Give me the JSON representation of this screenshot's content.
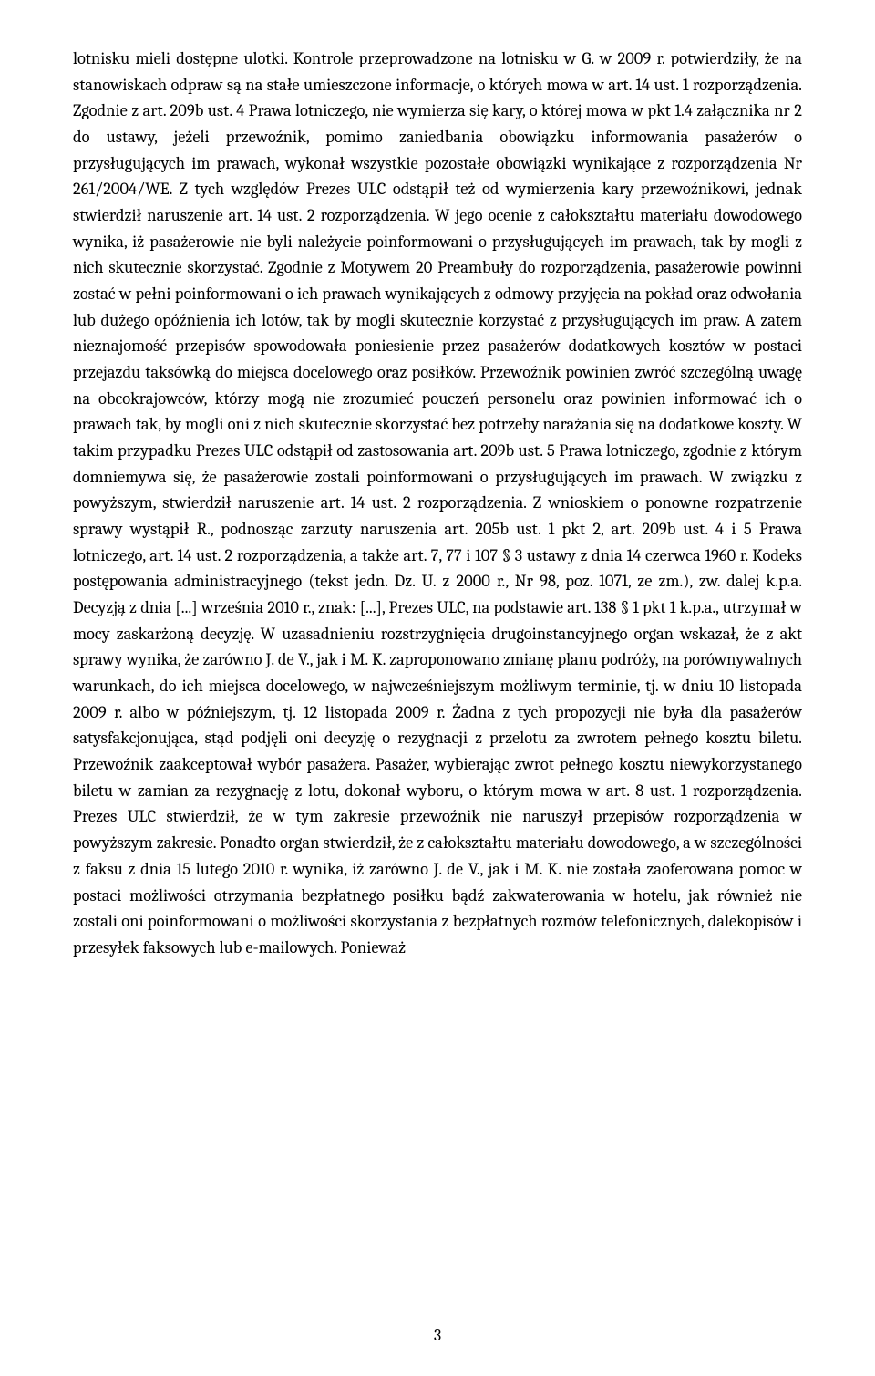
{
  "body_text": "lotnisku mieli dostępne ulotki. Kontrole przeprowadzone na lotnisku w G. w 2009 r. potwierdziły, że na stanowiskach odpraw są na stałe umieszczone informacje, o których mowa w art. 14 ust. 1 rozporządzenia. Zgodnie z art. 209b ust. 4 Prawa lotniczego, nie wymierza się kary, o której mowa w pkt 1.4 załącznika nr 2 do ustawy, jeżeli przewoźnik, pomimo zaniedbania obowiązku informowania pasażerów o przysługujących im prawach, wykonał wszystkie pozostałe obowiązki wynikające z rozporządzenia Nr 261/2004/WE. Z tych względów Prezes ULC odstąpił też od wymierzenia kary przewoźnikowi, jednak stwierdził naruszenie art. 14 ust. 2 rozporządzenia. W jego ocenie z całokształtu materiału dowodowego wynika, iż pasażerowie nie byli należycie poinformowani o przysługujących im prawach, tak by mogli z nich skutecznie skorzystać. Zgodnie z Motywem 20 Preambuły do rozporządzenia, pasażerowie powinni zostać w pełni poinformowani o ich prawach wynikających z odmowy przyjęcia na pokład oraz odwołania lub dużego opóźnienia ich lotów, tak by mogli skutecznie korzystać z przysługujących im praw. A zatem nieznajomość przepisów spowodowała poniesienie przez pasażerów dodatkowych kosztów w postaci przejazdu taksówką do miejsca docelowego oraz posiłków. Przewoźnik powinien zwróć szczególną uwagę na obcokrajowców, którzy mogą nie zrozumieć pouczeń personelu oraz powinien informować ich o prawach tak, by mogli oni z nich skutecznie skorzystać bez potrzeby narażania się na dodatkowe koszty. W takim przypadku Prezes ULC odstąpił od zastosowania art. 209b ust. 5 Prawa lotniczego, zgodnie z którym domniemywa się, że pasażerowie zostali poinformowani o przysługujących im prawach. W związku z powyższym, stwierdził naruszenie art. 14 ust. 2 rozporządzenia. Z wnioskiem o ponowne rozpatrzenie sprawy wystąpił R., podnosząc zarzuty naruszenia art. 205b ust. 1 pkt 2, art. 209b ust. 4 i 5 Prawa lotniczego, art. 14 ust. 2 rozporządzenia, a także art. 7, 77 i 107 § 3 ustawy z dnia 14 czerwca 1960 r. Kodeks postępowania administracyjnego (tekst jedn. Dz. U. z 2000 r., Nr 98, poz. 1071, ze zm.), zw. dalej k.p.a. Decyzją z dnia [...] września 2010 r., znak: [...], Prezes ULC, na podstawie art. 138 § 1 pkt 1 k.p.a., utrzymał w mocy zaskarżoną decyzję. W uzasadnieniu rozstrzygnięcia drugoinstancyjnego organ wskazał, że z akt sprawy wynika, że zarówno J. de V., jak i M. K. zaproponowano zmianę planu podróży, na porównywalnych warunkach, do ich miejsca docelowego, w najwcześniejszym możliwym terminie, tj. w dniu 10 listopada 2009 r. albo w późniejszym, tj. 12 listopada 2009 r. Żadna z tych propozycji nie była dla pasażerów satysfakcjonująca, stąd podjęli oni decyzję o rezygnacji z przelotu za zwrotem pełnego kosztu biletu. Przewoźnik zaakceptował wybór pasażera. Pasażer, wybierając zwrot pełnego kosztu niewykorzystanego biletu w zamian za rezygnację z lotu, dokonał wyboru, o którym mowa w art. 8 ust. 1 rozporządzenia. Prezes ULC stwierdził, że w tym zakresie przewoźnik nie naruszył przepisów rozporządzenia w powyższym zakresie. Ponadto organ stwierdził, że z całokształtu materiału dowodowego, a w szczególności z faksu z dnia 15 lutego 2010 r. wynika, iż zarówno J. de V., jak i M. K. nie została zaoferowana pomoc w postaci możliwości otrzymania bezpłatnego posiłku bądź zakwaterowania w hotelu, jak również nie zostali oni poinformowani o możliwości skorzystania z bezpłatnych rozmów telefonicznych, dalekopisów i przesyłek faksowych lub e-mailowych. Ponieważ",
  "page_number": "3"
}
